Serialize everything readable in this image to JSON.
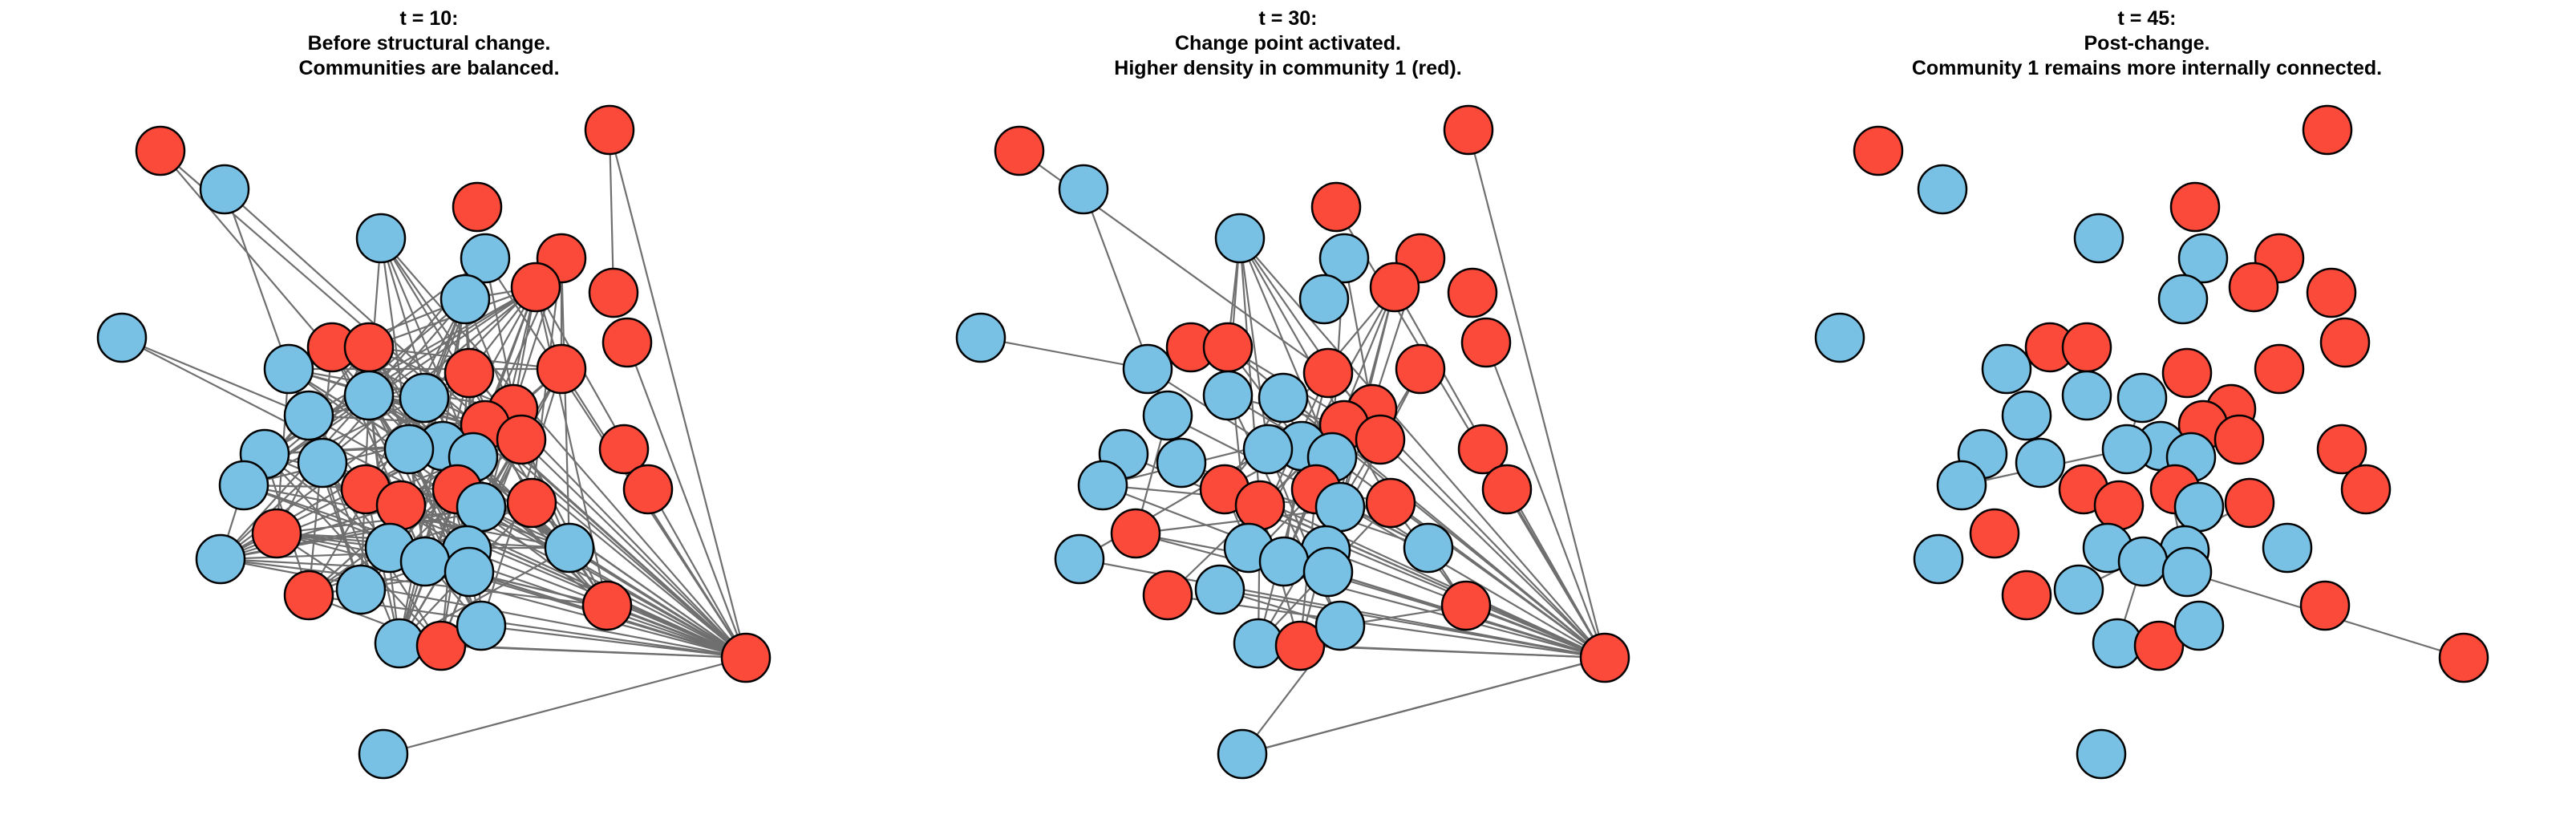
{
  "colors": {
    "community_0": "#79c1e4",
    "community_1": "#fb4a3a",
    "edge": "#6f6f6f",
    "node_stroke": "#000000"
  },
  "panels": [
    {
      "title_lines": [
        "t = 10:",
        "Before structural change.",
        "Communities are balanced."
      ],
      "edges": "dense"
    },
    {
      "title_lines": [
        "t = 30:",
        "Change point activated.",
        "Higher density in community 1 (red)."
      ],
      "edges": "medium"
    },
    {
      "title_lines": [
        "t = 45:",
        "Post-change.",
        "Community 1 remains more internally connected."
      ],
      "edges": "sparse"
    }
  ]
}
